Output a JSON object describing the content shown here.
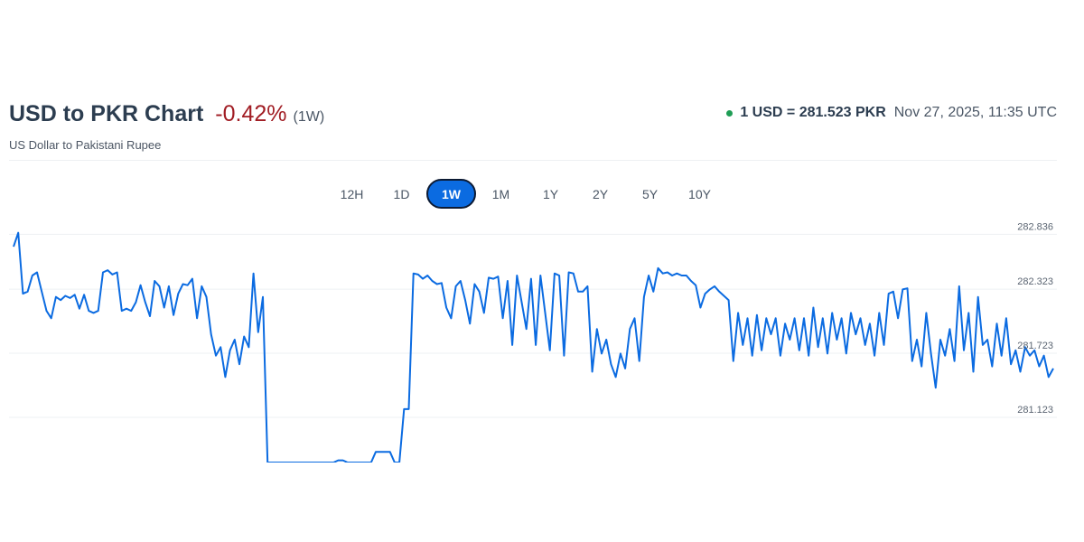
{
  "header": {
    "title": "USD to PKR Chart",
    "change": "-0.42%",
    "period": "(1W)",
    "subtitle": "US Dollar to Pakistani Rupee",
    "rate": "1 USD = 281.523 PKR",
    "timestamp": "Nov 27, 2025, 11:35 UTC",
    "live_color": "#1f9d55"
  },
  "ranges": [
    {
      "label": "12H",
      "active": false
    },
    {
      "label": "1D",
      "active": false
    },
    {
      "label": "1W",
      "active": true
    },
    {
      "label": "1M",
      "active": false
    },
    {
      "label": "1Y",
      "active": false
    },
    {
      "label": "2Y",
      "active": false
    },
    {
      "label": "5Y",
      "active": false
    },
    {
      "label": "10Y",
      "active": false
    }
  ],
  "chart_data": {
    "type": "line",
    "title": "",
    "xlabel": "",
    "ylabel": "",
    "y_ticks": [
      "282.836",
      "282.323",
      "281.723",
      "281.123"
    ],
    "y_tick_values": [
      282.836,
      282.323,
      281.723,
      281.123
    ],
    "ylim": [
      280.7,
      283.0
    ],
    "grid": true,
    "line_color": "#0b6be1",
    "series": [
      {
        "values": [
          282.72,
          282.85,
          282.28,
          282.3,
          282.45,
          282.48,
          282.3,
          282.12,
          282.05,
          282.25,
          282.22,
          282.26,
          282.24,
          282.27,
          282.14,
          282.27,
          282.12,
          282.1,
          282.12,
          282.48,
          282.5,
          282.46,
          282.48,
          282.12,
          282.14,
          282.12,
          282.2,
          282.36,
          282.2,
          282.07,
          282.4,
          282.35,
          282.15,
          282.35,
          282.08,
          282.28,
          282.37,
          282.36,
          282.42,
          282.05,
          282.35,
          282.25,
          281.9,
          281.7,
          281.78,
          281.5,
          281.75,
          281.85,
          281.62,
          281.88,
          281.78,
          282.47,
          281.92,
          282.25,
          280.7,
          280.7,
          280.7,
          280.7,
          280.7,
          280.7,
          280.7,
          280.7,
          280.7,
          280.7,
          280.7,
          280.7,
          280.7,
          280.7,
          280.7,
          280.72,
          280.72,
          280.7,
          280.7,
          280.7,
          280.7,
          280.7,
          280.7,
          280.8,
          280.8,
          280.8,
          280.8,
          280.7,
          280.7,
          281.2,
          281.2,
          282.47,
          282.46,
          282.42,
          282.45,
          282.4,
          282.37,
          282.38,
          282.15,
          282.05,
          282.35,
          282.4,
          282.22,
          282.0,
          282.37,
          282.3,
          282.1,
          282.43,
          282.42,
          282.44,
          282.05,
          282.4,
          281.8,
          282.45,
          282.2,
          281.95,
          282.42,
          281.8,
          282.45,
          282.1,
          281.75,
          282.47,
          282.45,
          281.7,
          282.48,
          282.47,
          282.3,
          282.3,
          282.35,
          281.55,
          281.95,
          281.72,
          281.85,
          281.62,
          281.5,
          281.72,
          281.58,
          281.95,
          282.05,
          281.65,
          282.25,
          282.45,
          282.3,
          282.52,
          282.47,
          282.48,
          282.45,
          282.47,
          282.45,
          282.45,
          282.4,
          282.36,
          282.15,
          282.28,
          282.32,
          282.35,
          282.3,
          282.26,
          282.22,
          281.65,
          282.1,
          281.8,
          282.05,
          281.7,
          282.08,
          281.75,
          282.05,
          281.9,
          282.05,
          281.7,
          282.0,
          281.85,
          282.05,
          281.75,
          282.05,
          281.7,
          282.15,
          281.78,
          282.05,
          281.72,
          282.1,
          281.85,
          282.05,
          281.72,
          282.1,
          281.9,
          282.05,
          281.8,
          282.0,
          281.7,
          282.1,
          281.8,
          282.28,
          282.3,
          282.05,
          282.32,
          282.33,
          281.65,
          281.85,
          281.6,
          282.1,
          281.72,
          281.4,
          281.85,
          281.7,
          281.95,
          281.65,
          282.35,
          281.75,
          282.1,
          281.55,
          282.25,
          281.8,
          281.85,
          281.6,
          282.0,
          281.7,
          282.05,
          281.62,
          281.75,
          281.55,
          281.78,
          281.7,
          281.75,
          281.6,
          281.7,
          281.5,
          281.58
        ]
      }
    ]
  }
}
